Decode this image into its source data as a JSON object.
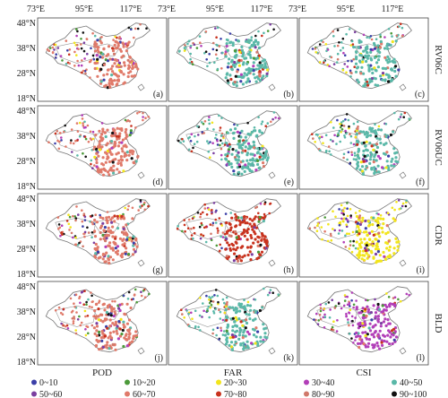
{
  "figure": {
    "lon_ticks": [
      "73°E",
      "95°E",
      "117°E"
    ],
    "lat_ticks": [
      "48°N",
      "38°N",
      "28°N",
      "18°N"
    ],
    "row_labels": [
      "RV06C",
      "RV06UC",
      "CDR",
      "BLD"
    ],
    "col_labels": [
      "POD",
      "FAR",
      "CSI"
    ],
    "panel_labels": [
      "(a)",
      "(b)",
      "(c)",
      "(d)",
      "(e)",
      "(f)",
      "(g)",
      "(h)",
      "(i)",
      "(j)",
      "(k)",
      "(l)"
    ],
    "legend": [
      {
        "label": "0~10",
        "color": "#3b3fa8"
      },
      {
        "label": "10~20",
        "color": "#4c9a3a"
      },
      {
        "label": "20~30",
        "color": "#f2e51c"
      },
      {
        "label": "30~40",
        "color": "#b23fb8"
      },
      {
        "label": "40~50",
        "color": "#5ab8a8"
      },
      {
        "label": "50~60",
        "color": "#7b3fa0"
      },
      {
        "label": "60~70",
        "color": "#e07a6a"
      },
      {
        "label": "70~80",
        "color": "#c8321e"
      },
      {
        "label": "80~90",
        "color": "#d0786a"
      },
      {
        "label": "90~100",
        "color": "#111111"
      }
    ],
    "panel_dominant": [
      [
        "60~70",
        "40~50",
        "40~50"
      ],
      [
        "60~70",
        "40~50",
        "40~50"
      ],
      [
        "60~70",
        "70~80",
        "20~30"
      ],
      [
        "60~70",
        "40~50",
        "30~40"
      ]
    ]
  }
}
